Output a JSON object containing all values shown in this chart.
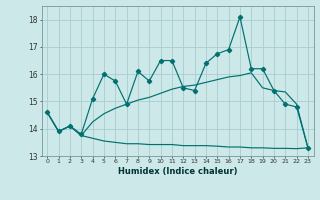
{
  "xlabel": "Humidex (Indice chaleur)",
  "bg_color": "#cce8e8",
  "grid_color": "#aacccc",
  "line_color": "#007070",
  "xlim": [
    -0.5,
    23.5
  ],
  "ylim": [
    13,
    18.5
  ],
  "yticks": [
    13,
    14,
    15,
    16,
    17,
    18
  ],
  "xticks": [
    0,
    1,
    2,
    3,
    4,
    5,
    6,
    7,
    8,
    9,
    10,
    11,
    12,
    13,
    14,
    15,
    16,
    17,
    18,
    19,
    20,
    21,
    22,
    23
  ],
  "series1_y": [
    14.6,
    13.9,
    14.1,
    13.8,
    15.1,
    16.0,
    15.75,
    14.9,
    16.1,
    15.75,
    16.5,
    16.5,
    15.5,
    15.4,
    16.4,
    16.75,
    16.9,
    18.1,
    16.2,
    16.2,
    15.4,
    14.9,
    14.8,
    13.3
  ],
  "series2_y": [
    14.6,
    13.9,
    14.1,
    13.75,
    14.25,
    14.55,
    14.75,
    14.9,
    15.05,
    15.15,
    15.3,
    15.45,
    15.55,
    15.6,
    15.7,
    15.8,
    15.9,
    15.95,
    16.05,
    15.5,
    15.4,
    15.35,
    14.9,
    13.3
  ],
  "series3_y": [
    14.6,
    13.9,
    14.1,
    13.75,
    13.65,
    13.55,
    13.5,
    13.45,
    13.45,
    13.42,
    13.42,
    13.42,
    13.38,
    13.38,
    13.38,
    13.36,
    13.33,
    13.33,
    13.3,
    13.3,
    13.28,
    13.28,
    13.27,
    13.3
  ]
}
